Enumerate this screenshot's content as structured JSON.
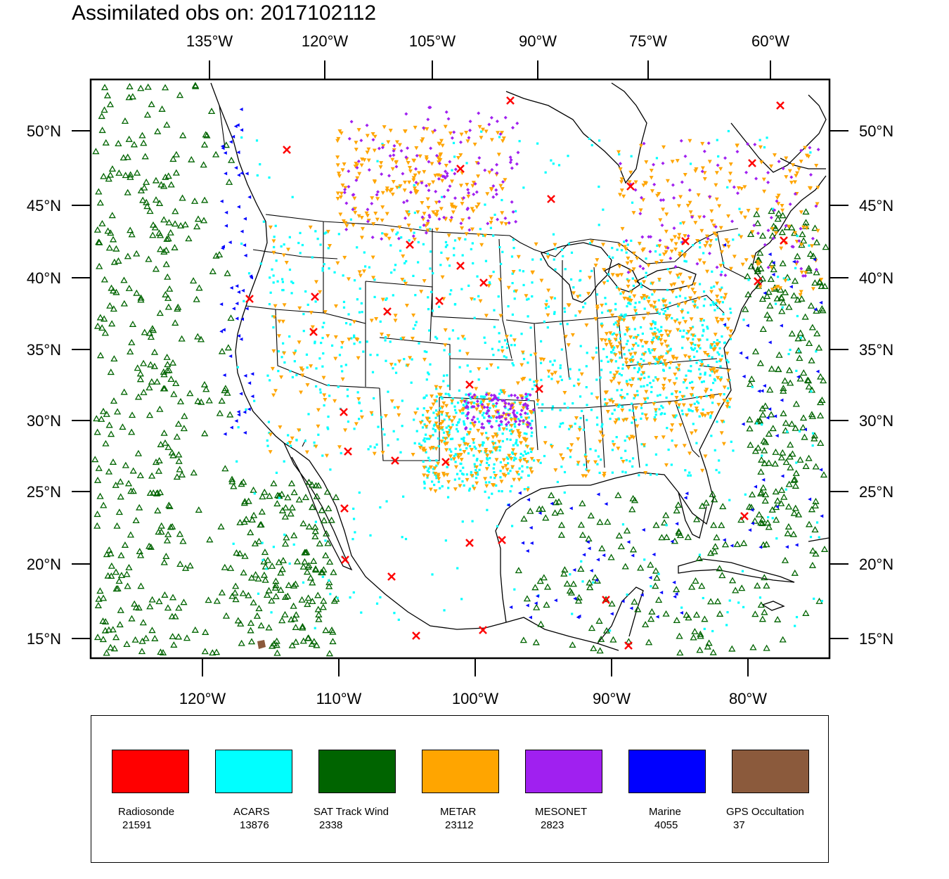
{
  "title": "Assimilated obs on: 2017102112",
  "axes": {
    "top": [
      "135°W",
      "120°W",
      "105°W",
      "90°W",
      "75°W",
      "60°W"
    ],
    "bottom": [
      "120°W",
      "110°W",
      "100°W",
      "90°W",
      "80°W"
    ],
    "left": [
      "50°N",
      "45°N",
      "40°N",
      "35°N",
      "30°N",
      "25°N",
      "20°N",
      "15°N"
    ],
    "right": [
      "50°N",
      "45°N",
      "40°N",
      "35°N",
      "30°N",
      "25°N",
      "20°N",
      "15°N"
    ]
  },
  "legend": [
    {
      "name": "Radiosonde",
      "count": "21591",
      "color": "#ff0000"
    },
    {
      "name": "ACARS",
      "count": "13876",
      "color": "#00ffff"
    },
    {
      "name": "SAT Track Wind",
      "count": "2338",
      "color": "#006400"
    },
    {
      "name": "METAR",
      "count": "23112",
      "color": "#ffa500"
    },
    {
      "name": "MESONET",
      "count": "2823",
      "color": "#a020f0"
    },
    {
      "name": "Marine",
      "count": "4055",
      "color": "#0000ff"
    },
    {
      "name": "GPS Occultation",
      "count": "37",
      "color": "#8b5a3c"
    }
  ]
}
